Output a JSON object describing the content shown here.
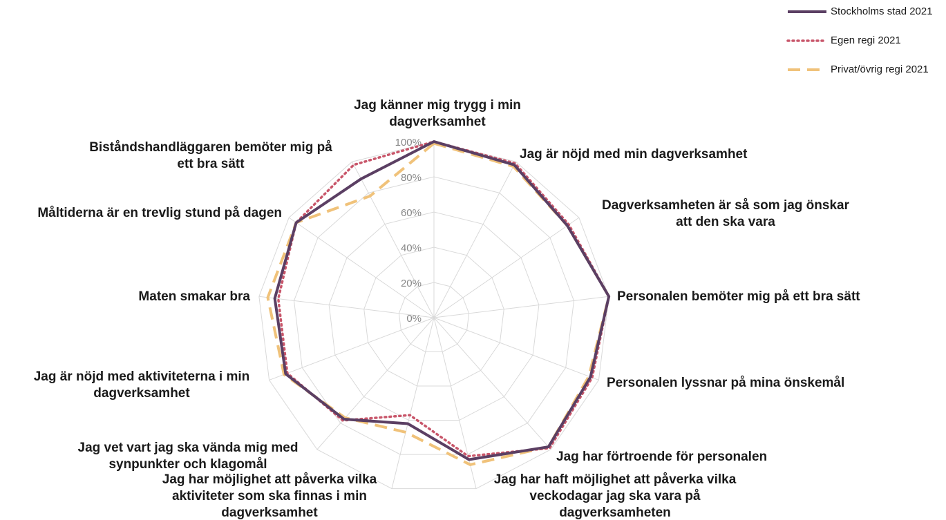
{
  "chart_data": {
    "type": "radar",
    "categories": [
      "Jag känner mig trygg i min dagverksamhet",
      "Jag är nöjd med min dagverksamhet",
      "Dagverksamheten är så som jag önskar att den ska vara",
      "Personalen bemöter mig på ett bra sätt",
      "Personalen lyssnar på mina önskemål",
      "Jag har förtroende för personalen",
      "Jag har haft möjlighet att påverka vilka veckodagar jag ska vara på dagverksamheten",
      "Jag har möjlighet att påverka vilka aktiviteter som ska finnas i min dagverksamhet",
      "Jag vet vart jag ska vända mig med synpunkter och klagomål",
      "Jag är nöjd med aktiviteterna i min dagverksamhet",
      "Maten smakar bra",
      "Måltiderna är en trevlig stund på dagen",
      "Biståndshandläggaren bemöter mig på ett bra sätt"
    ],
    "series": [
      {
        "name": "Stockholms stad 2021",
        "color": "#5b3f63",
        "style": "solid",
        "values": [
          100,
          98,
          92,
          100,
          95,
          98,
          83,
          62,
          77,
          90,
          91,
          95,
          89
        ]
      },
      {
        "name": "Egen regi 2021",
        "color": "#c8566a",
        "style": "dotted",
        "values": [
          100,
          99,
          93,
          100,
          96,
          99,
          81,
          57,
          78,
          89,
          89,
          95,
          98
        ]
      },
      {
        "name": "Privat/övrig regi 2021",
        "color": "#f0c27a",
        "style": "dashed",
        "values": [
          99,
          97,
          92,
          100,
          94,
          98,
          86,
          67,
          76,
          91,
          95,
          95,
          78
        ]
      }
    ],
    "ylim": [
      0,
      100
    ],
    "yticks": [
      {
        "value": 0,
        "label": "0%"
      },
      {
        "value": 20,
        "label": "20%"
      },
      {
        "value": 40,
        "label": "40%"
      },
      {
        "value": 60,
        "label": "60%"
      },
      {
        "value": 80,
        "label": "80%"
      },
      {
        "value": 100,
        "label": "100%"
      }
    ],
    "grid": true,
    "legend": "top-right"
  }
}
